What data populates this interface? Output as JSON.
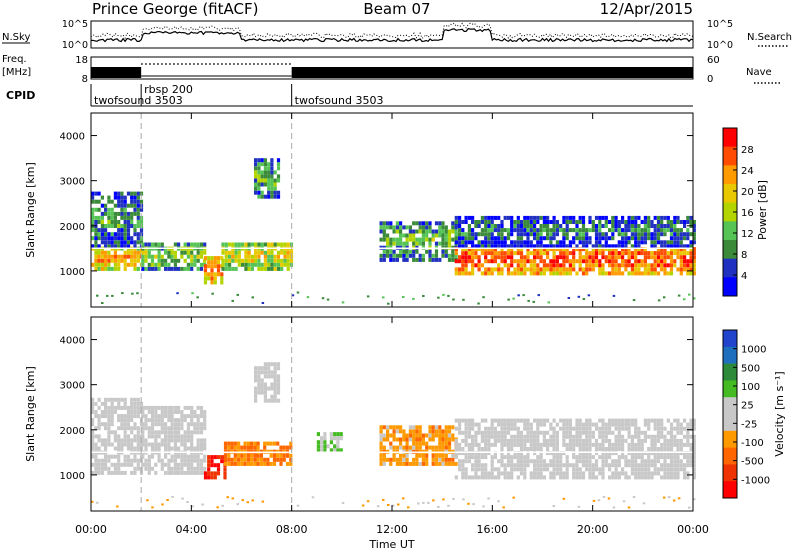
{
  "header": {
    "station": "Prince George (fitACF)",
    "beam": "Beam 07",
    "date": "12/Apr/2015"
  },
  "strip": {
    "nsky_label": "N.Sky",
    "nsearch_label": "N.Search",
    "noise_ticks": [
      "10^5",
      "10^0"
    ],
    "freq_label": "Freq.",
    "freq_unit": "[MHz]",
    "freq_ticks": [
      "18",
      "8"
    ],
    "nave_label": "Nave",
    "nave_ticks": [
      "60",
      "0"
    ],
    "cpid_label": "CPID",
    "cpid_segments": [
      {
        "name": "twofsound 3503",
        "start_hour": 0,
        "end_hour": 2
      },
      {
        "name": "rbsp 200",
        "start_hour": 2,
        "end_hour": 8
      },
      {
        "name": "twofsound 3503",
        "start_hour": 8,
        "end_hour": 24
      }
    ]
  },
  "panels": {
    "ylabel": "Slant Range [km]",
    "yticks": [
      "4000",
      "3000",
      "2000",
      "1000"
    ]
  },
  "xaxis": {
    "label": "Time UT",
    "ticks": [
      "00:00",
      "04:00",
      "08:00",
      "12:00",
      "16:00",
      "20:00",
      "00:00"
    ]
  },
  "colorbars": {
    "power": {
      "label": "Power [dB]",
      "ticks": [
        "28",
        "24",
        "20",
        "16",
        "12",
        "8",
        "4"
      ],
      "colors": [
        "#ff0000",
        "#ff4c00",
        "#ff9a00",
        "#e8c800",
        "#b4d400",
        "#55c455",
        "#3a8a3a",
        "#2030c0",
        "#0000ff"
      ]
    },
    "velocity": {
      "label": "Velocity [m s⁻¹]",
      "ticks": [
        "1000",
        "500",
        "100",
        "25",
        "-25",
        "-100",
        "-500",
        "-1000"
      ],
      "colors": [
        "#2244cc",
        "#1f6fbf",
        "#2d8a3a",
        "#44bb22",
        "#c8c8c8",
        "#c8c8c8",
        "#ff9900",
        "#ff6600",
        "#ee3300",
        "#ff0000"
      ]
    }
  },
  "chart_data": [
    {
      "type": "heatmap",
      "name": "Power",
      "title": "",
      "xlabel": "Time UT",
      "ylabel": "Slant Range [km]",
      "xlim_hours": [
        0,
        24
      ],
      "ylim": [
        200,
        4500
      ],
      "zlabel": "Power [dB]",
      "zlim": [
        0,
        30
      ],
      "bands": [
        {
          "t_start": 0.0,
          "t_end": 2.0,
          "r_low": 1000,
          "r_high": 1500,
          "value": 22
        },
        {
          "t_start": 0.0,
          "t_end": 2.0,
          "r_low": 1500,
          "r_high": 2700,
          "value": 10
        },
        {
          "t_start": 2.0,
          "t_end": 4.5,
          "r_low": 1000,
          "r_high": 1600,
          "value": 14
        },
        {
          "t_start": 4.5,
          "t_end": 5.2,
          "r_low": 700,
          "r_high": 1300,
          "value": 24
        },
        {
          "t_start": 5.2,
          "t_end": 8.0,
          "r_low": 1000,
          "r_high": 1600,
          "value": 18
        },
        {
          "t_start": 6.5,
          "t_end": 7.5,
          "r_low": 2600,
          "r_high": 3500,
          "value": 12
        },
        {
          "t_start": 11.5,
          "t_end": 14.5,
          "r_low": 1200,
          "r_high": 2100,
          "value": 12
        },
        {
          "t_start": 14.5,
          "t_end": 24.0,
          "r_low": 900,
          "r_high": 1500,
          "value": 26
        },
        {
          "t_start": 14.5,
          "t_end": 24.0,
          "r_low": 1500,
          "r_high": 2200,
          "value": 8
        }
      ]
    },
    {
      "type": "heatmap",
      "name": "Velocity",
      "title": "",
      "xlabel": "Time UT",
      "ylabel": "Slant Range [km]",
      "xlim_hours": [
        0,
        24
      ],
      "ylim": [
        200,
        4500
      ],
      "zlabel": "Velocity [m s-1]",
      "zlim": [
        -1000,
        1000
      ],
      "bands": [
        {
          "t_start": 0.0,
          "t_end": 2.0,
          "r_low": 1000,
          "r_high": 2700,
          "value": 0
        },
        {
          "t_start": 2.0,
          "t_end": 4.5,
          "r_low": 1000,
          "r_high": 2500,
          "value": 0
        },
        {
          "t_start": 4.5,
          "t_end": 5.3,
          "r_low": 900,
          "r_high": 1400,
          "value": -800
        },
        {
          "t_start": 5.3,
          "t_end": 8.0,
          "r_low": 1200,
          "r_high": 1700,
          "value": -400
        },
        {
          "t_start": 6.5,
          "t_end": 7.5,
          "r_low": 2600,
          "r_high": 3500,
          "value": 0
        },
        {
          "t_start": 9.0,
          "t_end": 10.0,
          "r_low": 1500,
          "r_high": 1900,
          "value": 150
        },
        {
          "t_start": 11.5,
          "t_end": 14.5,
          "r_low": 1200,
          "r_high": 2100,
          "value": -300
        },
        {
          "t_start": 14.5,
          "t_end": 24.0,
          "r_low": 900,
          "r_high": 2200,
          "value": 0
        }
      ]
    }
  ]
}
